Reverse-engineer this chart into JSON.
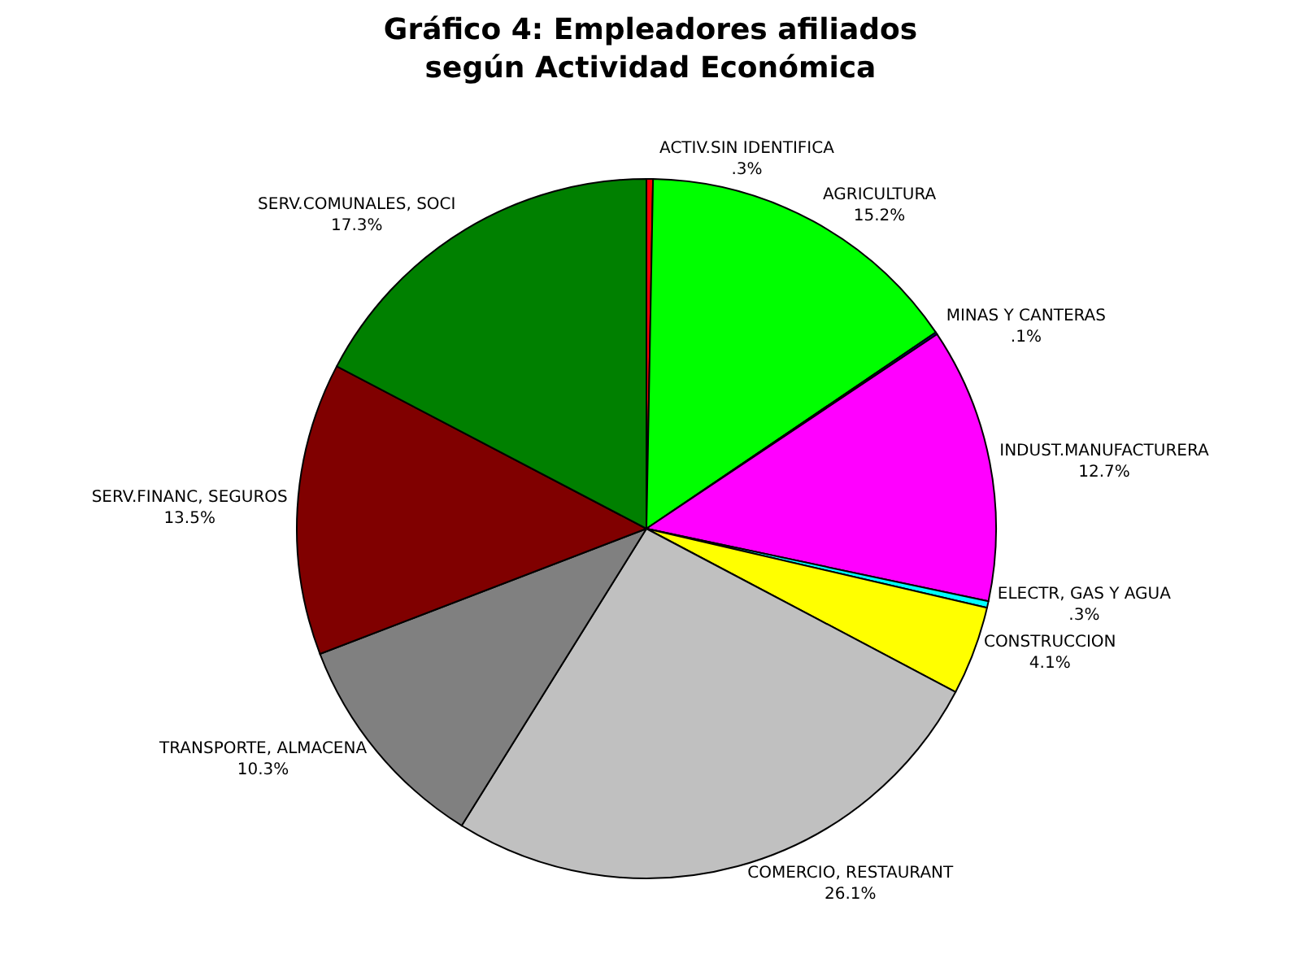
{
  "chart_data": {
    "type": "pie",
    "title": "Gráfico 4: Empleadores afiliados\nsegún Actividad Económica",
    "categories": [
      "ACTIV.SIN IDENTIFICA",
      "AGRICULTURA",
      "MINAS Y CANTERAS",
      "INDUST.MANUFACTURERA",
      "ELECTR, GAS Y AGUA",
      "CONSTRUCCION",
      "COMERCIO, RESTAURANT",
      "TRANSPORTE, ALMACENA",
      "SERV.FINANC, SEGUROS",
      "SERV.COMUNALES, SOCI"
    ],
    "values": [
      0.3,
      15.2,
      0.1,
      12.7,
      0.3,
      4.1,
      26.1,
      10.3,
      13.5,
      17.3
    ],
    "value_labels": [
      ".3%",
      "15.2%",
      ".1%",
      "12.7%",
      ".3%",
      "4.1%",
      "26.1%",
      "10.3%",
      "13.5%",
      "17.3%"
    ],
    "colors": [
      "#ff0000",
      "#00ff00",
      "#0000ff",
      "#ff00ff",
      "#00ffff",
      "#ffff00",
      "#c0c0c0",
      "#808080",
      "#800000",
      "#008000"
    ],
    "legend": false
  }
}
